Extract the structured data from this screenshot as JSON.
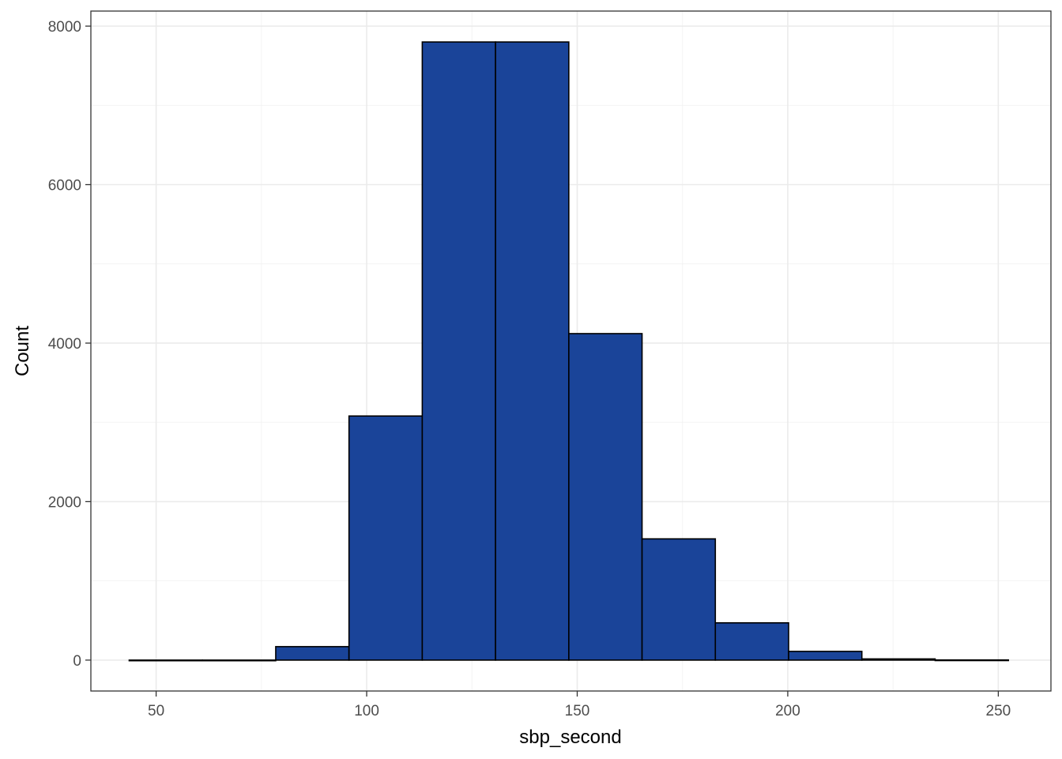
{
  "chart_data": {
    "type": "bar",
    "subtype": "histogram",
    "xlabel": "sbp_second",
    "ylabel": "Count",
    "xlim": [
      34.5,
      262.5
    ],
    "ylim": [
      -390,
      8190
    ],
    "xticks": [
      50,
      100,
      150,
      200,
      250
    ],
    "yticks": [
      0,
      2000,
      4000,
      6000,
      8000
    ],
    "grid": true,
    "legend": "none",
    "bin_width": 17.4,
    "bins": [
      {
        "x0": 43.6,
        "x1": 61.0,
        "count": 0
      },
      {
        "x0": 61.0,
        "x1": 78.4,
        "count": 0
      },
      {
        "x0": 78.4,
        "x1": 95.8,
        "count": 170
      },
      {
        "x0": 95.8,
        "x1": 113.2,
        "count": 3080
      },
      {
        "x0": 113.2,
        "x1": 130.6,
        "count": 7800
      },
      {
        "x0": 130.6,
        "x1": 148.0,
        "count": 7800
      },
      {
        "x0": 148.0,
        "x1": 165.4,
        "count": 4120
      },
      {
        "x0": 165.4,
        "x1": 182.8,
        "count": 1530
      },
      {
        "x0": 182.8,
        "x1": 200.2,
        "count": 470
      },
      {
        "x0": 200.2,
        "x1": 217.6,
        "count": 110
      },
      {
        "x0": 217.6,
        "x1": 235.0,
        "count": 15
      },
      {
        "x0": 235.0,
        "x1": 252.4,
        "count": 2
      }
    ],
    "colors": {
      "bar_fill": "#1a4499",
      "bar_outline": "#000000",
      "background": "#ffffff"
    }
  }
}
